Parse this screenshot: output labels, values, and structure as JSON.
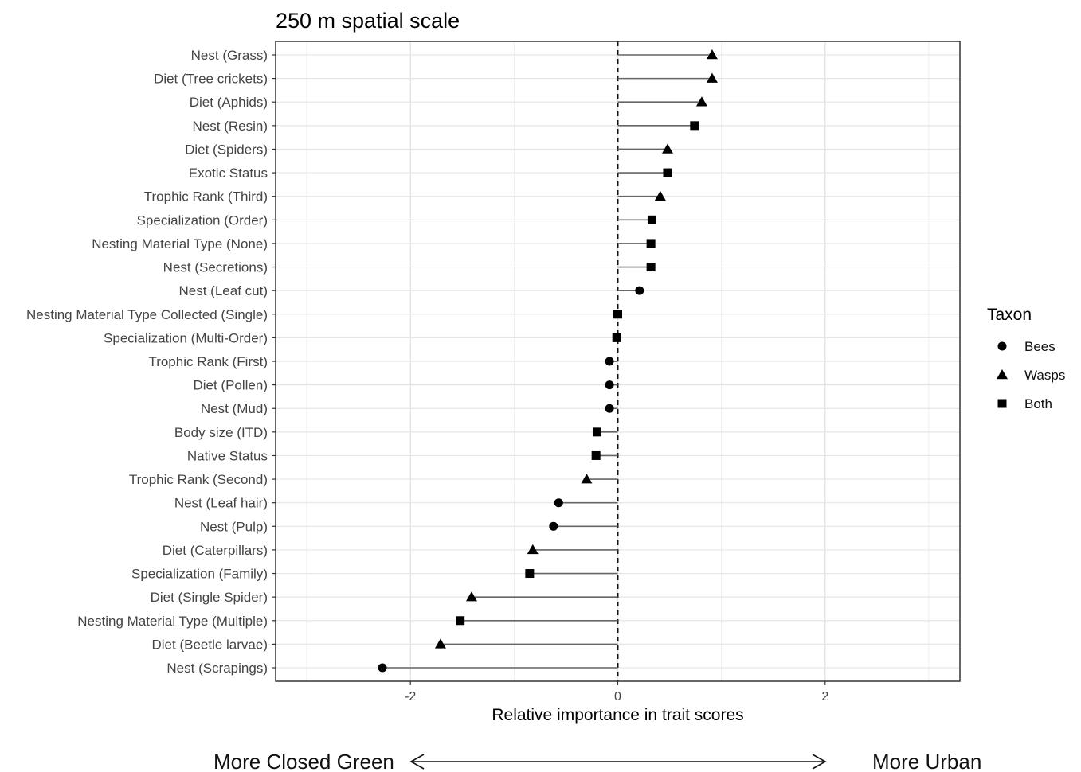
{
  "chart_data": {
    "type": "scatter",
    "title": "250 m spatial scale",
    "xlabel": "Relative importance in trait scores",
    "ylabel": "",
    "xlim": [
      -3.3,
      3.3
    ],
    "x_ticks": [
      -2,
      0,
      2
    ],
    "x_tick_labels": [
      "-2",
      "0",
      "2"
    ],
    "reference_line": 0,
    "grid": true,
    "legend_position": "right",
    "legend_title": "Taxon",
    "legend": [
      {
        "name": "Bees",
        "shape": "circle"
      },
      {
        "name": "Wasps",
        "shape": "triangle"
      },
      {
        "name": "Both",
        "shape": "square"
      }
    ],
    "points": [
      {
        "label": "Nest (Grass)",
        "value": 0.91,
        "taxon": "Wasps"
      },
      {
        "label": "Diet (Tree crickets)",
        "value": 0.91,
        "taxon": "Wasps"
      },
      {
        "label": "Diet (Aphids)",
        "value": 0.81,
        "taxon": "Wasps"
      },
      {
        "label": "Nest (Resin)",
        "value": 0.74,
        "taxon": "Both"
      },
      {
        "label": "Diet (Spiders)",
        "value": 0.48,
        "taxon": "Wasps"
      },
      {
        "label": "Exotic Status",
        "value": 0.48,
        "taxon": "Both"
      },
      {
        "label": "Trophic Rank (Third)",
        "value": 0.41,
        "taxon": "Wasps"
      },
      {
        "label": "Specialization (Order)",
        "value": 0.33,
        "taxon": "Both"
      },
      {
        "label": "Nesting Material Type (None)",
        "value": 0.32,
        "taxon": "Both"
      },
      {
        "label": "Nest (Secretions)",
        "value": 0.32,
        "taxon": "Both"
      },
      {
        "label": "Nest (Leaf cut)",
        "value": 0.21,
        "taxon": "Bees"
      },
      {
        "label": "Nesting Material Type Collected (Single)",
        "value": 0.0,
        "taxon": "Both"
      },
      {
        "label": "Specialization (Multi-Order)",
        "value": -0.01,
        "taxon": "Both"
      },
      {
        "label": "Trophic Rank (First)",
        "value": -0.08,
        "taxon": "Bees"
      },
      {
        "label": "Diet (Pollen)",
        "value": -0.08,
        "taxon": "Bees"
      },
      {
        "label": "Nest (Mud)",
        "value": -0.08,
        "taxon": "Bees"
      },
      {
        "label": "Body size (ITD)",
        "value": -0.2,
        "taxon": "Both"
      },
      {
        "label": "Native Status",
        "value": -0.21,
        "taxon": "Both"
      },
      {
        "label": "Trophic Rank (Second)",
        "value": -0.3,
        "taxon": "Wasps"
      },
      {
        "label": "Nest (Leaf hair)",
        "value": -0.57,
        "taxon": "Bees"
      },
      {
        "label": "Nest (Pulp)",
        "value": -0.62,
        "taxon": "Bees"
      },
      {
        "label": "Diet (Caterpillars)",
        "value": -0.82,
        "taxon": "Wasps"
      },
      {
        "label": "Specialization (Family)",
        "value": -0.85,
        "taxon": "Both"
      },
      {
        "label": "Diet (Single Spider)",
        "value": -1.41,
        "taxon": "Wasps"
      },
      {
        "label": "Nesting Material Type (Multiple)",
        "value": -1.52,
        "taxon": "Both"
      },
      {
        "label": "Diet (Beetle larvae)",
        "value": -1.71,
        "taxon": "Wasps"
      },
      {
        "label": "Nest (Scrapings)",
        "value": -2.27,
        "taxon": "Bees"
      }
    ],
    "direction_labels": {
      "left": "More Closed Green",
      "right": "More Urban"
    }
  }
}
